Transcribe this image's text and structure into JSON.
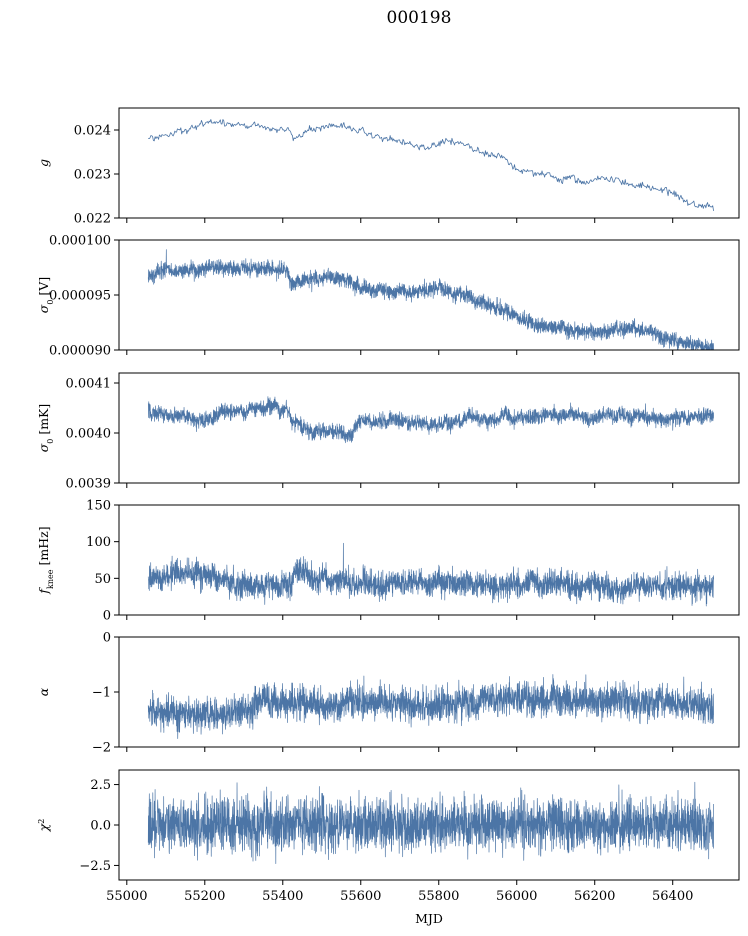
{
  "chart_data": {
    "type": "line",
    "title": "000198",
    "xlabel": "MJD",
    "xlim": [
      54980,
      56570
    ],
    "x_range": [
      55055,
      56505
    ],
    "xticks": [
      55000,
      55200,
      55400,
      55600,
      55800,
      56000,
      56200,
      56400
    ],
    "xtick_labels": [
      "55000",
      "55200",
      "55400",
      "55600",
      "55800",
      "56000",
      "56200",
      "56400"
    ],
    "color": "#4c75a6",
    "panels": [
      {
        "name": "g",
        "ylabel": "g",
        "ylabel_html": "<tspan font-style=\"italic\">g</tspan>",
        "ylim": [
          0.022,
          0.0245
        ],
        "yticks": [
          0.022,
          0.023,
          0.024
        ],
        "ytick_labels": [
          "0.022",
          "0.023",
          "0.024"
        ],
        "noise": 3.5e-05,
        "wiggle": 7e-05,
        "trend": [
          [
            55055,
            0.02383
          ],
          [
            55100,
            0.02398
          ],
          [
            55200,
            0.02412
          ],
          [
            55280,
            0.02415
          ],
          [
            55380,
            0.0241
          ],
          [
            55420,
            0.024
          ],
          [
            55430,
            0.02377
          ],
          [
            55460,
            0.02395
          ],
          [
            55520,
            0.02408
          ],
          [
            55580,
            0.02402
          ],
          [
            55620,
            0.0239
          ],
          [
            55660,
            0.02375
          ],
          [
            55700,
            0.0237
          ],
          [
            55760,
            0.02355
          ],
          [
            55830,
            0.0237
          ],
          [
            55870,
            0.02362
          ],
          [
            55900,
            0.0235
          ],
          [
            55960,
            0.02335
          ],
          [
            56000,
            0.02312
          ],
          [
            56060,
            0.02298
          ],
          [
            56120,
            0.0229
          ],
          [
            56200,
            0.02282
          ],
          [
            56260,
            0.02278
          ],
          [
            56320,
            0.02272
          ],
          [
            56380,
            0.02262
          ],
          [
            56440,
            0.02248
          ],
          [
            56505,
            0.0223
          ]
        ]
      },
      {
        "name": "sigma0-v",
        "ylabel": "σ0 [V]",
        "ylabel_html": "<tspan font-style=\"italic\">σ</tspan><tspan baseline-shift=\"sub\" font-size=\"8\">0</tspan><tspan> [V]</tspan>",
        "ylim": [
          9e-05,
          0.0001
        ],
        "yticks": [
          9e-05,
          9.5e-05,
          0.0001
        ],
        "ytick_labels": [
          "0.000090",
          "0.000095",
          "0.000100"
        ],
        "noise": 3.5e-07,
        "wiggle": 1.5e-07,
        "trend": [
          [
            55055,
            9.66e-05
          ],
          [
            55100,
            9.72e-05
          ],
          [
            55200,
            9.74e-05
          ],
          [
            55300,
            9.745e-05
          ],
          [
            55410,
            9.735e-05
          ],
          [
            55425,
            9.59e-05
          ],
          [
            55460,
            9.64e-05
          ],
          [
            55520,
            9.665e-05
          ],
          [
            55560,
            9.65e-05
          ],
          [
            55600,
            9.56e-05
          ],
          [
            55660,
            9.53e-05
          ],
          [
            55720,
            9.52e-05
          ],
          [
            55800,
            9.555e-05
          ],
          [
            55850,
            9.52e-05
          ],
          [
            55900,
            9.44e-05
          ],
          [
            55960,
            9.38e-05
          ],
          [
            56000,
            9.3e-05
          ],
          [
            56060,
            9.23e-05
          ],
          [
            56120,
            9.19e-05
          ],
          [
            56200,
            9.16e-05
          ],
          [
            56260,
            9.2e-05
          ],
          [
            56320,
            9.18e-05
          ],
          [
            56380,
            9.11e-05
          ],
          [
            56440,
            9.06e-05
          ],
          [
            56505,
            9.02e-05
          ]
        ]
      },
      {
        "name": "sigma0-mk",
        "ylabel": "σ0 [mK]",
        "ylabel_html": "<tspan font-style=\"italic\">σ</tspan><tspan baseline-shift=\"sub\" font-size=\"8\">0</tspan><tspan> [mK]</tspan>",
        "ylim": [
          0.0039,
          0.00412
        ],
        "yticks": [
          0.0039,
          0.004,
          0.0041
        ],
        "ytick_labels": [
          "0.0039",
          "0.0040",
          "0.0041"
        ],
        "noise": 7.5e-06,
        "wiggle": 6e-06,
        "trend": [
          [
            55055,
            0.004045
          ],
          [
            55120,
            0.004035
          ],
          [
            55200,
            0.004025
          ],
          [
            55260,
            0.004045
          ],
          [
            55300,
            0.004045
          ],
          [
            55410,
            0.004048
          ],
          [
            55425,
            0.00402
          ],
          [
            55480,
            0.004005
          ],
          [
            55560,
            0.003995
          ],
          [
            55600,
            0.00402
          ],
          [
            55700,
            0.004028
          ],
          [
            55780,
            0.004018
          ],
          [
            55860,
            0.004025
          ],
          [
            55920,
            0.00403
          ],
          [
            56000,
            0.00403
          ],
          [
            56100,
            0.004035
          ],
          [
            56200,
            0.00403
          ],
          [
            56300,
            0.004032
          ],
          [
            56400,
            0.00403
          ],
          [
            56505,
            0.004035
          ]
        ]
      },
      {
        "name": "fknee",
        "ylabel": "fknee [mHz]",
        "ylabel_html": "<tspan font-style=\"italic\">f</tspan><tspan baseline-shift=\"sub\" font-size=\"8\">knee</tspan><tspan> [mHz]</tspan>",
        "ylim": [
          0,
          150
        ],
        "yticks": [
          0,
          50,
          100,
          150
        ],
        "ytick_labels": [
          "0",
          "50",
          "100",
          "150"
        ],
        "noise": 9,
        "wiggle": 4,
        "trend": [
          [
            55055,
            50
          ],
          [
            55150,
            55
          ],
          [
            55250,
            48
          ],
          [
            55330,
            38
          ],
          [
            55420,
            40
          ],
          [
            55430,
            62
          ],
          [
            55480,
            48
          ],
          [
            55560,
            45
          ],
          [
            55650,
            42
          ],
          [
            55750,
            45
          ],
          [
            55850,
            42
          ],
          [
            55950,
            40
          ],
          [
            56050,
            45
          ],
          [
            56150,
            40
          ],
          [
            56250,
            38
          ],
          [
            56350,
            40
          ],
          [
            56450,
            36
          ],
          [
            56505,
            36
          ]
        ]
      },
      {
        "name": "alpha",
        "ylabel": "α",
        "ylabel_html": "<tspan font-style=\"italic\">α</tspan>",
        "ylim": [
          -2,
          0
        ],
        "yticks": [
          -2,
          -1,
          0
        ],
        "ytick_labels": [
          "−2",
          "−1",
          "0"
        ],
        "noise": 0.15,
        "wiggle": 0.04,
        "trend": [
          [
            55055,
            -1.4
          ],
          [
            55200,
            -1.4
          ],
          [
            55320,
            -1.4
          ],
          [
            55330,
            -1.18
          ],
          [
            55420,
            -1.16
          ],
          [
            55500,
            -1.28
          ],
          [
            55550,
            -1.3
          ],
          [
            55560,
            -1.15
          ],
          [
            55700,
            -1.22
          ],
          [
            55800,
            -1.22
          ],
          [
            55900,
            -1.24
          ],
          [
            55910,
            -1.1
          ],
          [
            56100,
            -1.12
          ],
          [
            56250,
            -1.18
          ],
          [
            56400,
            -1.2
          ],
          [
            56505,
            -1.28
          ]
        ]
      },
      {
        "name": "chi2",
        "ylabel": "χ2",
        "ylabel_html": "<tspan font-style=\"italic\">χ</tspan><tspan baseline-shift=\"super\" font-size=\"8\">2</tspan>",
        "ylim": [
          -3.4,
          3.4
        ],
        "yticks": [
          -2.5,
          0,
          2.5
        ],
        "ytick_labels": [
          "−2.5",
          "0.0",
          "2.5"
        ],
        "noise": 0.85,
        "wiggle": 0,
        "trend": [
          [
            55055,
            0.0
          ],
          [
            56505,
            0.0
          ]
        ]
      }
    ]
  }
}
